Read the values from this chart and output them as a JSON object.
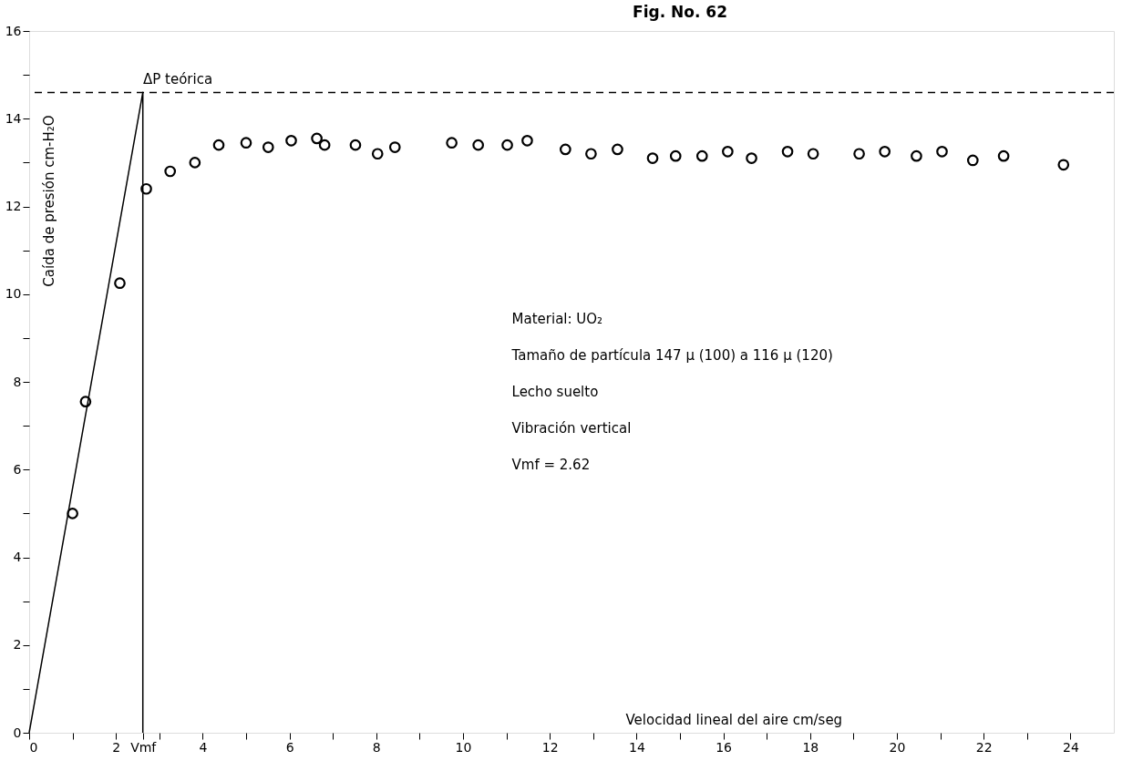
{
  "chart_data": {
    "type": "scatter",
    "title": "Fig. No. 62",
    "xlabel": "Velocidad lineal del aire cm/seg",
    "ylabel": "Caída de presión cm-H₂O",
    "series": [
      {
        "color": "#000000",
        "marker": "circle",
        "x": [
          1.0,
          1.3,
          2.09,
          2.7,
          3.25,
          3.82,
          4.37,
          5.0,
          5.51,
          6.04,
          6.63,
          6.81,
          7.52,
          8.03,
          8.43,
          9.74,
          10.35,
          11.02,
          11.48,
          12.36,
          12.95,
          13.56,
          14.37,
          14.9,
          15.51,
          16.1,
          16.65,
          17.48,
          18.07,
          19.13,
          19.72,
          20.45,
          21.04,
          21.75,
          22.46,
          23.84
        ],
        "values": [
          5.0,
          7.55,
          10.25,
          12.4,
          12.8,
          13.0,
          13.4,
          13.45,
          13.35,
          13.5,
          13.55,
          13.4,
          13.4,
          13.2,
          13.35,
          13.45,
          13.4,
          13.4,
          13.5,
          13.3,
          13.2,
          13.3,
          13.1,
          13.15,
          13.15,
          13.25,
          13.1,
          13.25,
          13.2,
          13.2,
          13.25,
          13.15,
          13.25,
          13.05,
          13.15,
          12.95
        ]
      },
      {
        "type": "line",
        "color": "#000000",
        "line_style": "solid",
        "marker": "none",
        "x": [
          0,
          2.62,
          2.62
        ],
        "values": [
          0,
          14.6,
          0
        ]
      }
    ],
    "xlim": [
      0,
      25
    ],
    "ylim": [
      0,
      16
    ],
    "xticks": [
      0,
      {
        "value": 1,
        "label": null
      },
      2,
      {
        "value": 2.62,
        "label": "Vmf"
      },
      {
        "value": 3,
        "label": null
      },
      4,
      {
        "value": 5,
        "label": null
      },
      6,
      {
        "value": 7,
        "label": null
      },
      8,
      {
        "value": 9,
        "label": null
      },
      10,
      {
        "value": 11,
        "label": null
      },
      12,
      {
        "value": 13,
        "label": null
      },
      14,
      {
        "value": 15,
        "label": null
      },
      16,
      {
        "value": 17,
        "label": null
      },
      18,
      {
        "value": 19,
        "label": null
      },
      20,
      {
        "value": 21,
        "label": null
      },
      22,
      {
        "value": 23,
        "label": null
      },
      24
    ],
    "yticks": [
      0,
      {
        "value": 1,
        "label": null
      },
      2,
      {
        "value": 3,
        "label": null
      },
      4,
      {
        "value": 5,
        "label": null
      },
      6,
      {
        "value": 7,
        "label": null
      },
      8,
      {
        "value": 9,
        "label": null
      },
      10,
      {
        "value": 11,
        "label": null
      },
      12,
      {
        "value": 13,
        "label": null
      },
      14,
      {
        "value": 15,
        "label": null
      },
      16
    ],
    "ref_lines": [
      {
        "axis": "y",
        "value": 14.6,
        "label": "ΔP teórica",
        "color": "#000000",
        "line_style": "dashed"
      }
    ],
    "annotations": [
      "Material: UO₂",
      "Tamaño de partícula 147 µ (100) a 116 µ (120)",
      "Lecho suelto",
      "Vibración vertical",
      "Vmf = 2.62"
    ],
    "grid": false
  }
}
